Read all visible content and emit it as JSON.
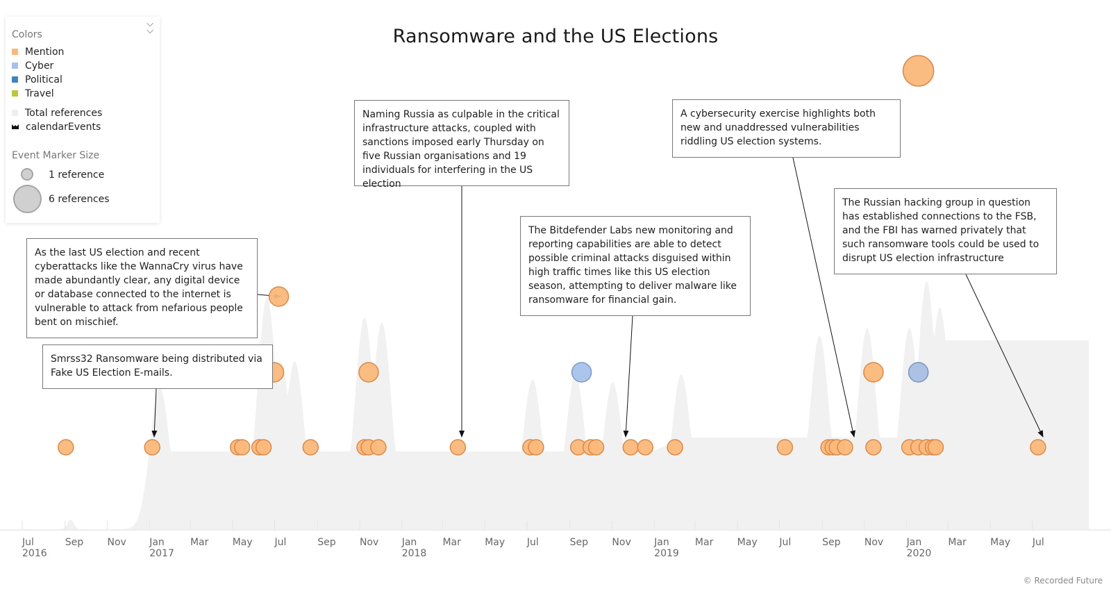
{
  "chart_data": {
    "type": "scatter",
    "title": "Ransomware and the US Elections",
    "x_tick_labels": [
      {
        "month": "Jul",
        "year": "2016"
      },
      {
        "month": "Sep",
        "year": ""
      },
      {
        "month": "Nov",
        "year": ""
      },
      {
        "month": "Jan",
        "year": "2017"
      },
      {
        "month": "Mar",
        "year": ""
      },
      {
        "month": "May",
        "year": ""
      },
      {
        "month": "Jul",
        "year": ""
      },
      {
        "month": "Sep",
        "year": ""
      },
      {
        "month": "Nov",
        "year": ""
      },
      {
        "month": "Jan",
        "year": "2018"
      },
      {
        "month": "Mar",
        "year": ""
      },
      {
        "month": "May",
        "year": ""
      },
      {
        "month": "Jul",
        "year": ""
      },
      {
        "month": "Sep",
        "year": ""
      },
      {
        "month": "Nov",
        "year": ""
      },
      {
        "month": "Jan",
        "year": "2019"
      },
      {
        "month": "Mar",
        "year": ""
      },
      {
        "month": "May",
        "year": ""
      },
      {
        "month": "Jul",
        "year": ""
      },
      {
        "month": "Sep",
        "year": ""
      },
      {
        "month": "Nov",
        "year": ""
      },
      {
        "month": "Jan",
        "year": "2020"
      },
      {
        "month": "Mar",
        "year": ""
      },
      {
        "month": "May",
        "year": ""
      },
      {
        "month": "Jul",
        "year": ""
      }
    ],
    "x_range": [
      "2016-07-01",
      "2020-07-20"
    ],
    "grid": false,
    "legend_position": "top-left",
    "colors": {
      "Mention": "#fbb87a",
      "Cyber": "#a7c2ea",
      "Political": "#3d86bd",
      "Travel": "#b8c93c",
      "Total references": "#f1f1f1",
      "calendarEvents": "#111111"
    },
    "event_markers": [
      {
        "date": "2016-08-25",
        "type": "Mention",
        "references": 1
      },
      {
        "date": "2016-12-28",
        "type": "Mention",
        "references": 1
      },
      {
        "date": "2017-05-01",
        "type": "Mention",
        "references": 1
      },
      {
        "date": "2017-05-07",
        "type": "Mention",
        "references": 1
      },
      {
        "date": "2017-06-01",
        "type": "Mention",
        "references": 1
      },
      {
        "date": "2017-06-07",
        "type": "Mention",
        "references": 1
      },
      {
        "date": "2017-06-22",
        "type": "Mention",
        "references": 2
      },
      {
        "date": "2017-08-14",
        "type": "Mention",
        "references": 1
      },
      {
        "date": "2017-10-31",
        "type": "Mention",
        "references": 1
      },
      {
        "date": "2017-11-06",
        "type": "Mention",
        "references": 1
      },
      {
        "date": "2017-11-20",
        "type": "Mention",
        "references": 1
      },
      {
        "date": "2018-03-15",
        "type": "Mention",
        "references": 1
      },
      {
        "date": "2018-06-28",
        "type": "Mention",
        "references": 1
      },
      {
        "date": "2018-07-06",
        "type": "Mention",
        "references": 1
      },
      {
        "date": "2018-09-05",
        "type": "Mention",
        "references": 1
      },
      {
        "date": "2018-09-23",
        "type": "Mention",
        "references": 1
      },
      {
        "date": "2018-10-01",
        "type": "Mention",
        "references": 1
      },
      {
        "date": "2018-11-20",
        "type": "Mention",
        "references": 1
      },
      {
        "date": "2018-12-11",
        "type": "Mention",
        "references": 1
      },
      {
        "date": "2019-01-23",
        "type": "Mention",
        "references": 1
      },
      {
        "date": "2019-07-01",
        "type": "Mention",
        "references": 1
      },
      {
        "date": "2019-09-02",
        "type": "Mention",
        "references": 1
      },
      {
        "date": "2019-09-08",
        "type": "Mention",
        "references": 1
      },
      {
        "date": "2019-09-14",
        "type": "Mention",
        "references": 1
      },
      {
        "date": "2019-09-26",
        "type": "Mention",
        "references": 1
      },
      {
        "date": "2019-11-06",
        "type": "Mention",
        "references": 1
      },
      {
        "date": "2019-12-28",
        "type": "Mention",
        "references": 1
      },
      {
        "date": "2020-01-10",
        "type": "Mention",
        "references": 1
      },
      {
        "date": "2020-01-22",
        "type": "Mention",
        "references": 1
      },
      {
        "date": "2020-01-31",
        "type": "Mention",
        "references": 1
      },
      {
        "date": "2020-02-04",
        "type": "Mention",
        "references": 1
      },
      {
        "date": "2020-07-01",
        "type": "Mention",
        "references": 1
      },
      {
        "date": "2017-06-29",
        "type": "Mention",
        "references": 3
      },
      {
        "date": "2017-11-06",
        "type": "Mention",
        "references": 2
      },
      {
        "date": "2018-09-10",
        "type": "Cyber",
        "references": 2
      },
      {
        "date": "2019-11-06",
        "type": "Mention",
        "references": 2
      },
      {
        "date": "2020-01-10",
        "type": "Mention",
        "references": 2
      },
      {
        "date": "2020-01-10",
        "type": "Cyber",
        "references": 2
      },
      {
        "date": "2020-01-10",
        "type": "Mention",
        "references": 6
      }
    ],
    "total_references_peaks": [
      {
        "date": "2017-01-08",
        "level": 0.55
      },
      {
        "date": "2017-06-12",
        "level": 0.9
      },
      {
        "date": "2017-07-02",
        "level": 0.65
      },
      {
        "date": "2017-07-22",
        "level": 0.65
      },
      {
        "date": "2017-10-31",
        "level": 0.82
      },
      {
        "date": "2017-11-25",
        "level": 0.8
      },
      {
        "date": "2018-07-01",
        "level": 0.58
      },
      {
        "date": "2018-09-01",
        "level": 0.6
      },
      {
        "date": "2018-10-25",
        "level": 0.57
      },
      {
        "date": "2019-02-01",
        "level": 0.6
      },
      {
        "date": "2019-08-20",
        "level": 0.75
      },
      {
        "date": "2019-10-28",
        "level": 0.78
      },
      {
        "date": "2019-12-28",
        "level": 0.78
      },
      {
        "date": "2020-01-22",
        "level": 0.96
      },
      {
        "date": "2020-02-10",
        "level": 0.86
      }
    ]
  },
  "legend": {
    "colors_title": "Colors",
    "items": [
      {
        "label": "Mention"
      },
      {
        "label": "Cyber"
      },
      {
        "label": "Political"
      },
      {
        "label": "Travel"
      }
    ],
    "total_label": "Total references",
    "calendar_label": "calendarEvents",
    "size_title": "Event Marker Size",
    "size_small_label": "1 reference",
    "size_large_label": "6 references",
    "collapse_icon": "double-chevron-down-icon"
  },
  "annotations": [
    {
      "text": "As the last US election and recent cyberattacks like the WannaCry virus have made abundantly clear, any digital device or database connected to the internet is vulnerable to attack from nefarious people bent on mischief.",
      "date": "2017-06-29"
    },
    {
      "text": "Smrss32 Ransomware being distributed via Fake US Election E-mails.",
      "date": "2016-12-28"
    },
    {
      "text": "Naming Russia as culpable in the critical infrastructure attacks, coupled with sanctions imposed early Thursday on five Russian organisations and 19 individuals for interfering in the US election",
      "date": "2018-03-15"
    },
    {
      "text": "The Bitdefender Labs new monitoring and reporting capabilities are able to detect possible criminal attacks disguised within high traffic times like this US election season, attempting to deliver malware like ransomware for financial gain.",
      "date": "2018-10-01"
    },
    {
      "text": "A cybersecurity exercise highlights both new and unaddressed vulnerabilities riddling US election systems.",
      "date": "2019-09-26"
    },
    {
      "text": "The Russian hacking group in question has established connections to the FSB, and the FBI has warned privately that such ransomware tools could be used to disrupt US election infrastructure",
      "date": "2020-07-01"
    }
  ],
  "footer": {
    "copyright": "© Recorded Future"
  }
}
